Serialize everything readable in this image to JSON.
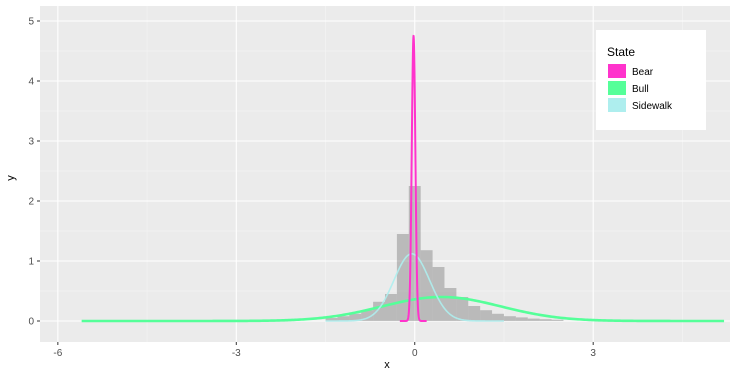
{
  "chart_data": {
    "type": "area",
    "title": "",
    "xlabel": "x",
    "ylabel": "y",
    "xlim": [
      -6.3,
      5.3
    ],
    "ylim": [
      -0.35,
      5.25
    ],
    "x_ticks": [
      -6,
      -3,
      0,
      3
    ],
    "x_tick_labels": [
      "-6",
      "-3",
      "0",
      "3"
    ],
    "y_ticks": [
      0,
      1,
      2,
      3,
      4,
      5
    ],
    "y_tick_labels": [
      "0",
      "1",
      "2",
      "3",
      "4",
      "5"
    ],
    "grid": true,
    "legend": {
      "title": "State",
      "position": "top-right",
      "entries": [
        "Bear",
        "Bull",
        "Sidewalk"
      ]
    },
    "histogram": {
      "color": "#7f7f7f",
      "bin_width": 0.2,
      "bins": [
        {
          "x0": -1.5,
          "x1": -1.3,
          "count": 0.05
        },
        {
          "x0": -1.3,
          "x1": -1.1,
          "count": 0.08
        },
        {
          "x0": -1.1,
          "x1": -0.9,
          "count": 0.12
        },
        {
          "x0": -0.9,
          "x1": -0.7,
          "count": 0.18
        },
        {
          "x0": -0.7,
          "x1": -0.5,
          "count": 0.32
        },
        {
          "x0": -0.5,
          "x1": -0.3,
          "count": 0.45
        },
        {
          "x0": -0.3,
          "x1": -0.1,
          "count": 1.45
        },
        {
          "x0": -0.1,
          "x1": 0.1,
          "count": 2.25
        },
        {
          "x0": 0.1,
          "x1": 0.3,
          "count": 1.18
        },
        {
          "x0": 0.3,
          "x1": 0.5,
          "count": 0.9
        },
        {
          "x0": 0.5,
          "x1": 0.7,
          "count": 0.55
        },
        {
          "x0": 0.7,
          "x1": 0.9,
          "count": 0.4
        },
        {
          "x0": 0.9,
          "x1": 1.1,
          "count": 0.25
        },
        {
          "x0": 1.1,
          "x1": 1.3,
          "count": 0.18
        },
        {
          "x0": 1.3,
          "x1": 1.5,
          "count": 0.12
        },
        {
          "x0": 1.5,
          "x1": 1.7,
          "count": 0.08
        },
        {
          "x0": 1.7,
          "x1": 1.9,
          "count": 0.06
        },
        {
          "x0": 1.9,
          "x1": 2.1,
          "count": 0.04
        },
        {
          "x0": 2.1,
          "x1": 2.3,
          "count": 0.03
        },
        {
          "x0": 2.3,
          "x1": 2.5,
          "count": 0.02
        }
      ]
    },
    "series": [
      {
        "name": "Bear",
        "color": "#ff33cc",
        "mean": -0.02,
        "sd": 0.03,
        "peak": 4.75,
        "xrange": [
          -0.25,
          0.2
        ]
      },
      {
        "name": "Bull",
        "color": "#55ff99",
        "mean": 0.45,
        "sd": 1.0,
        "peak": 0.4,
        "xrange": [
          -5.6,
          5.2
        ]
      },
      {
        "name": "Sidewalk",
        "color": "#aeeeee",
        "mean": -0.05,
        "sd": 0.3,
        "peak": 1.12,
        "xrange": [
          -1.5,
          1.5
        ]
      }
    ]
  }
}
